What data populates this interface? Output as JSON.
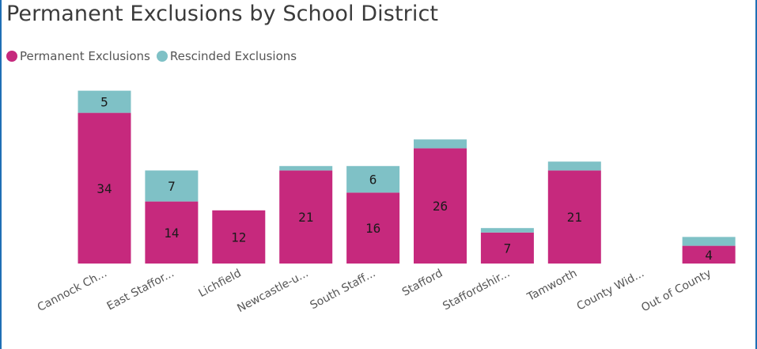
{
  "colors": {
    "permanent": "#c6297d",
    "rescinded": "#7fc1c6"
  },
  "chart_data": {
    "type": "bar",
    "stacked": true,
    "title": "Permanent Exclusions by School District",
    "legend_position": "top-left",
    "categories": [
      "Cannock Ch...",
      "East Staffor...",
      "Lichfield",
      "Newcastle-u...",
      "South Staff...",
      "Stafford",
      "Staffordshir...",
      "Tamworth",
      "County Wid...",
      "Out of County"
    ],
    "series": [
      {
        "name": "Permanent Exclusions",
        "values": [
          34,
          14,
          12,
          21,
          16,
          26,
          7,
          21,
          0,
          4
        ],
        "labels": [
          "34",
          "14",
          "12",
          "21",
          "16",
          "26",
          "7",
          "21",
          "",
          "4"
        ]
      },
      {
        "name": "Rescinded Exclusions",
        "values": [
          5,
          7,
          0,
          1,
          6,
          2,
          1,
          2,
          0,
          2
        ],
        "labels": [
          "5",
          "7",
          "",
          "",
          "6",
          "",
          "",
          "",
          "",
          ""
        ]
      }
    ],
    "ylim": [
      0,
      40
    ],
    "grid": false
  }
}
